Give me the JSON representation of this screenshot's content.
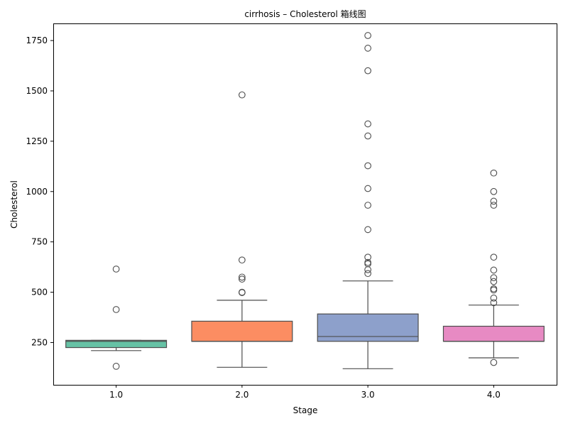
{
  "chart_data": {
    "type": "box",
    "title": "cirrhosis – Cholesterol 箱线图",
    "xlabel": "Stage",
    "ylabel": "Cholesterol",
    "categories": [
      "1.0",
      "2.0",
      "3.0",
      "4.0"
    ],
    "yticks": [
      250,
      500,
      750,
      1000,
      1250,
      1500,
      1750
    ],
    "ylim": [
      40,
      1835
    ],
    "grid": false,
    "boxes": [
      {
        "category": "1.0",
        "color": "#66c2a5",
        "q1": 225,
        "median": 256,
        "q3": 261,
        "whisker_low": 210,
        "whisker_high": 261,
        "outliers": [
          132,
          414,
          615
        ]
      },
      {
        "category": "2.0",
        "color": "#fc8d62",
        "q1": 256,
        "median": 256,
        "q3": 356,
        "whisker_low": 127,
        "whisker_high": 460,
        "outliers": [
          498,
          500,
          565,
          575,
          660,
          1480
        ]
      },
      {
        "category": "3.0",
        "color": "#8da0cb",
        "q1": 256,
        "median": 280,
        "q3": 392,
        "whisker_low": 120,
        "whisker_high": 556,
        "outliers": [
          593,
          612,
          641,
          648,
          674,
          811,
          932,
          1015,
          1128,
          1276,
          1336,
          1600,
          1712,
          1775
        ]
      },
      {
        "category": "4.0",
        "color": "#e78ac3",
        "q1": 256,
        "median": 256,
        "q3": 331,
        "whisker_low": 174,
        "whisker_high": 436,
        "outliers": [
          151,
          448,
          471,
          511,
          517,
          553,
          572,
          610,
          674,
          932,
          952,
          1000,
          1092
        ]
      }
    ]
  }
}
